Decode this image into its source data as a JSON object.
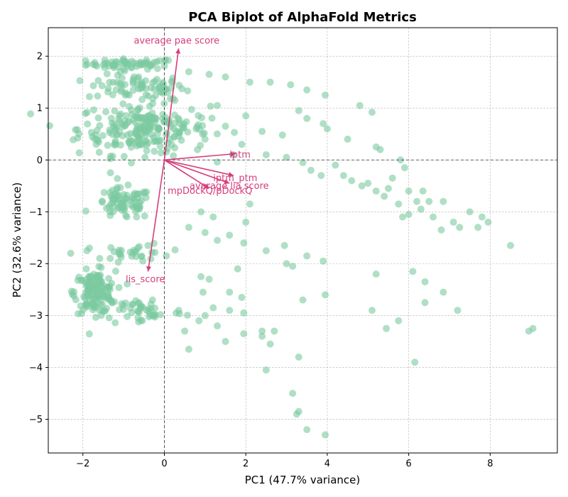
{
  "chart_data": {
    "type": "scatter",
    "title": "PCA Biplot of AlphaFold Metrics",
    "xlabel": "PC1 (47.7% variance)",
    "ylabel": "PC2 (32.6% variance)",
    "xlim": [
      -2.85,
      9.65
    ],
    "ylim": [
      -5.65,
      2.55
    ],
    "xticks": [
      -2,
      0,
      2,
      4,
      6,
      8
    ],
    "yticks": [
      2,
      1,
      0,
      -1,
      -2,
      -3,
      -4,
      -5
    ],
    "xtick_labels": [
      "−2",
      "0",
      "2",
      "4",
      "6",
      "8"
    ],
    "ytick_labels": [
      "2",
      "1",
      "0",
      "−1",
      "−2",
      "−3",
      "−4",
      "−5"
    ],
    "grid": true,
    "point_color": "#7ccaa0",
    "loading_color": "#d63d7a",
    "clusters": [
      {
        "cx": -0.8,
        "cy": 1.85,
        "sx": 0.55,
        "sy": 0.05,
        "n": 60
      },
      {
        "cx": -0.7,
        "cy": 1.4,
        "sx": 0.6,
        "sy": 0.12,
        "n": 70
      },
      {
        "cx": -0.5,
        "cy": 0.6,
        "sx": 0.8,
        "sy": 0.25,
        "n": 230
      },
      {
        "cx": -1.0,
        "cy": -0.85,
        "sx": 0.35,
        "sy": 0.15,
        "n": 80
      },
      {
        "cx": -0.7,
        "cy": -1.8,
        "sx": 0.4,
        "sy": 0.1,
        "n": 30
      },
      {
        "cx": -1.7,
        "cy": -2.55,
        "sx": 0.25,
        "sy": 0.2,
        "n": 140
      },
      {
        "cx": -0.5,
        "cy": -2.9,
        "sx": 0.5,
        "sy": 0.15,
        "n": 45
      }
    ],
    "points": [
      [
        0.6,
        1.7
      ],
      [
        1.1,
        1.65
      ],
      [
        1.5,
        1.6
      ],
      [
        2.1,
        1.5
      ],
      [
        2.6,
        1.5
      ],
      [
        3.1,
        1.45
      ],
      [
        3.5,
        1.35
      ],
      [
        3.95,
        1.25
      ],
      [
        4.8,
        1.05
      ],
      [
        5.1,
        0.92
      ],
      [
        1.3,
        1.05
      ],
      [
        2.0,
        0.85
      ],
      [
        3.3,
        0.95
      ],
      [
        3.5,
        0.8
      ],
      [
        3.9,
        0.7
      ],
      [
        4.0,
        0.6
      ],
      [
        4.5,
        0.4
      ],
      [
        5.2,
        0.25
      ],
      [
        5.3,
        0.2
      ],
      [
        1.5,
        0.65
      ],
      [
        2.4,
        0.55
      ],
      [
        2.9,
        0.48
      ],
      [
        1.0,
        0.4
      ],
      [
        1.9,
        0.3
      ],
      [
        2.5,
        0.1
      ],
      [
        3.0,
        0.05
      ],
      [
        3.4,
        -0.05
      ],
      [
        3.6,
        -0.2
      ],
      [
        3.85,
        -0.3
      ],
      [
        4.2,
        -0.1
      ],
      [
        4.4,
        -0.3
      ],
      [
        4.6,
        -0.4
      ],
      [
        4.85,
        -0.5
      ],
      [
        5.0,
        -0.45
      ],
      [
        5.2,
        -0.6
      ],
      [
        5.4,
        -0.7
      ],
      [
        5.5,
        -0.55
      ],
      [
        5.6,
        -0.35
      ],
      [
        5.8,
        0.0
      ],
      [
        5.9,
        -0.15
      ],
      [
        6.0,
        -0.6
      ],
      [
        6.2,
        -0.8
      ],
      [
        6.3,
        -0.95
      ],
      [
        6.35,
        -0.6
      ],
      [
        6.5,
        -0.8
      ],
      [
        6.6,
        -1.1
      ],
      [
        6.8,
        -1.35
      ],
      [
        6.85,
        -0.8
      ],
      [
        7.1,
        -1.2
      ],
      [
        7.25,
        -1.3
      ],
      [
        7.5,
        -1.0
      ],
      [
        7.7,
        -1.3
      ],
      [
        7.8,
        -1.1
      ],
      [
        7.95,
        -1.2
      ],
      [
        8.5,
        -1.65
      ],
      [
        5.75,
        -0.85
      ],
      [
        5.85,
        -1.1
      ],
      [
        6.0,
        -1.05
      ],
      [
        0.9,
        -1.0
      ],
      [
        1.2,
        -1.1
      ],
      [
        1.6,
        -1.45
      ],
      [
        1.3,
        -1.55
      ],
      [
        1.95,
        -1.6
      ],
      [
        2.0,
        -1.2
      ],
      [
        2.1,
        -0.85
      ],
      [
        1.0,
        -1.4
      ],
      [
        0.6,
        -1.3
      ],
      [
        2.5,
        -1.75
      ],
      [
        2.95,
        -1.65
      ],
      [
        3.0,
        -2.0
      ],
      [
        3.15,
        -2.05
      ],
      [
        3.5,
        -1.85
      ],
      [
        3.9,
        -1.95
      ],
      [
        1.8,
        -2.1
      ],
      [
        0.9,
        -2.25
      ],
      [
        1.1,
        -2.3
      ],
      [
        0.95,
        -2.55
      ],
      [
        1.6,
        -2.55
      ],
      [
        1.9,
        -2.65
      ],
      [
        1.2,
        -2.85
      ],
      [
        1.6,
        -2.9
      ],
      [
        1.95,
        -2.95
      ],
      [
        1.0,
        -3.0
      ],
      [
        0.5,
        -3.3
      ],
      [
        0.85,
        -3.1
      ],
      [
        1.3,
        -3.2
      ],
      [
        1.5,
        -3.5
      ],
      [
        1.95,
        -3.35
      ],
      [
        2.4,
        -3.3
      ],
      [
        2.4,
        -3.4
      ],
      [
        2.7,
        -3.3
      ],
      [
        2.6,
        -3.55
      ],
      [
        0.6,
        -3.65
      ],
      [
        2.5,
        -4.05
      ],
      [
        3.3,
        -3.8
      ],
      [
        3.95,
        -2.6
      ],
      [
        3.4,
        -2.7
      ],
      [
        3.15,
        -4.5
      ],
      [
        3.25,
        -4.9
      ],
      [
        3.3,
        -4.85
      ],
      [
        3.5,
        -5.2
      ],
      [
        3.95,
        -5.3
      ],
      [
        5.1,
        -2.9
      ],
      [
        5.2,
        -2.2
      ],
      [
        5.45,
        -3.25
      ],
      [
        5.75,
        -3.1
      ],
      [
        6.1,
        -2.15
      ],
      [
        6.4,
        -2.35
      ],
      [
        6.4,
        -2.75
      ],
      [
        6.85,
        -2.55
      ],
      [
        7.2,
        -2.9
      ],
      [
        6.15,
        -3.9
      ],
      [
        8.95,
        -3.3
      ],
      [
        9.05,
        -3.25
      ],
      [
        -2.3,
        -1.8
      ],
      [
        -1.9,
        -1.75
      ],
      [
        -0.4,
        -1.65
      ],
      [
        0.05,
        -1.85
      ]
    ],
    "loadings": [
      {
        "label": "average pae score",
        "x": 0.35,
        "y": 2.15,
        "lx": -0.75,
        "ly": 2.3
      },
      {
        "label": "iptm",
        "x": 1.75,
        "y": 0.12,
        "lx": 1.6,
        "ly": 0.1
      },
      {
        "label": "iptm_ptm",
        "x": 1.7,
        "y": -0.3,
        "lx": 1.2,
        "ly": -0.35
      },
      {
        "label": "average lia score",
        "x": 1.6,
        "y": -0.45,
        "lx": 0.62,
        "ly": -0.5
      },
      {
        "label": "mpDockQ/pDockQ",
        "x": 1.1,
        "y": -0.55,
        "lx": 0.08,
        "ly": -0.6
      },
      {
        "label": "lis_score",
        "x": -0.4,
        "y": -2.15,
        "lx": -0.95,
        "ly": -2.3
      }
    ]
  }
}
